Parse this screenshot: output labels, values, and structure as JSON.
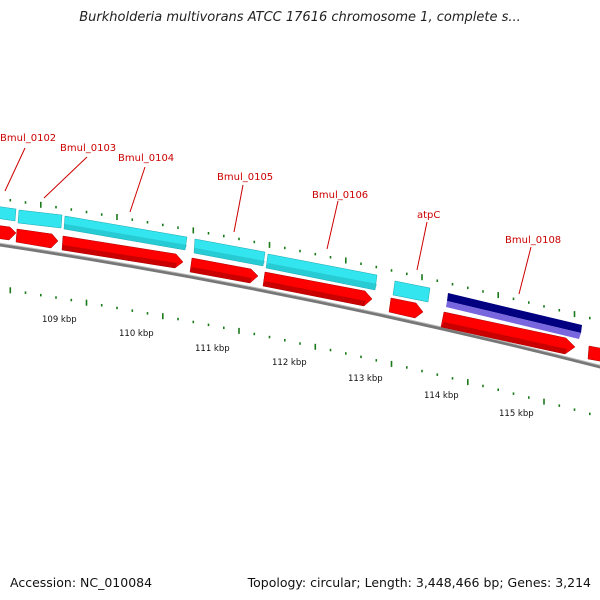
{
  "title": "Burkholderia multivorans ATCC 17616 chromosome 1, complete s...",
  "footer": {
    "accession": "Accession: NC_010084",
    "summary": "Topology: circular; Length: 3,448,466 bp; Genes: 3,214"
  },
  "genes": [
    {
      "label": "Bmul_0102"
    },
    {
      "label": "Bmul_0103"
    },
    {
      "label": "Bmul_0104"
    },
    {
      "label": "Bmul_0105"
    },
    {
      "label": "Bmul_0106"
    },
    {
      "label": "atpC"
    },
    {
      "label": "Bmul_0108"
    }
  ],
  "scale_labels": [
    "109 kbp",
    "110 kbp",
    "111 kbp",
    "112 kbp",
    "113 kbp",
    "114 kbp",
    "115 kbp"
  ],
  "colors": {
    "cds_forward": "#ff0000",
    "gene_track": "#33e5ee",
    "highlight_dark": "#000080",
    "highlight_light": "#7766dd",
    "backbone": "#777777",
    "ticks": "#1a7a1a",
    "label": "#cc0000"
  }
}
